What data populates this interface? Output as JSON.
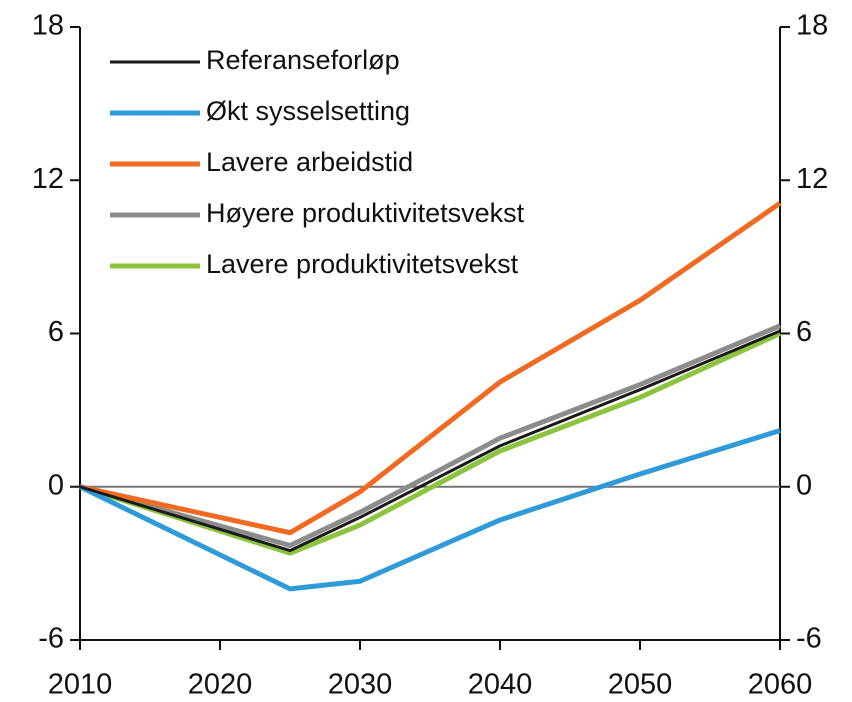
{
  "chart_data": {
    "type": "line",
    "x": [
      2010,
      2025,
      2030,
      2040,
      2050,
      2060
    ],
    "xlim": [
      2010,
      2060
    ],
    "xticks": [
      2010,
      2020,
      2030,
      2040,
      2050,
      2060
    ],
    "ylim": [
      -6,
      18
    ],
    "yticks": [
      -6,
      0,
      6,
      12,
      18
    ],
    "y2lim": [
      -6,
      18
    ],
    "y2ticks": [
      -6,
      0,
      6,
      12,
      18
    ],
    "legend": "upper left",
    "series": [
      {
        "name": "Referanseforløp",
        "color": "#1a1a1a",
        "values": [
          0,
          -2.5,
          -1.2,
          1.6,
          3.8,
          6.1
        ]
      },
      {
        "name": "Økt sysselsetting",
        "color": "#2f9ad8",
        "values": [
          0,
          -4.0,
          -3.7,
          -1.3,
          0.5,
          2.2
        ]
      },
      {
        "name": "Lavere arbeidstid",
        "color": "#f06a22",
        "values": [
          0,
          -1.8,
          -0.2,
          4.1,
          7.3,
          11.1
        ]
      },
      {
        "name": "Høyere produktivitetsvekst",
        "color": "#8c8c8c",
        "values": [
          0,
          -2.3,
          -1.0,
          1.9,
          4.0,
          6.3
        ]
      },
      {
        "name": "Lavere produktivitetsvekst",
        "color": "#8cc43f",
        "values": [
          0,
          -2.6,
          -1.5,
          1.4,
          3.5,
          6.0
        ]
      }
    ]
  }
}
